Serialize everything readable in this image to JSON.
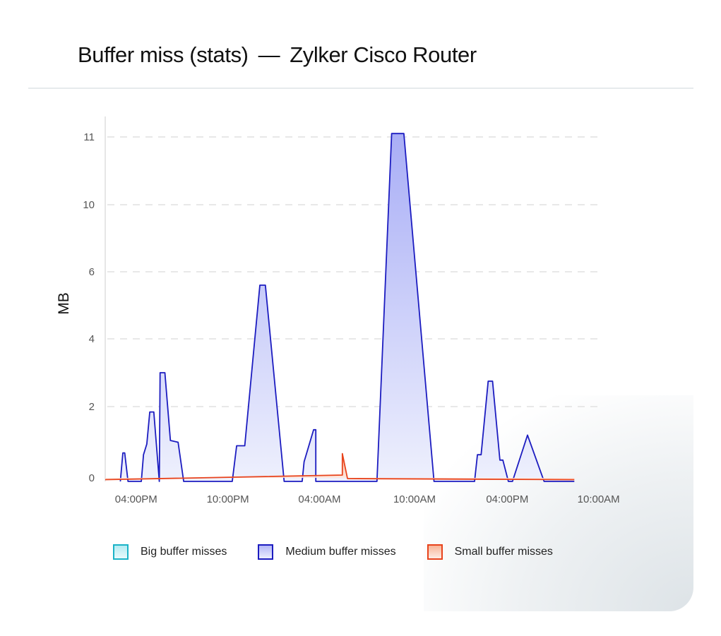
{
  "header": {
    "metric": "Buffer miss (stats)",
    "separator": "—",
    "device": "Zylker Cisco Router"
  },
  "colors": {
    "big": "#1ab3c7",
    "medium": "#1c1cc0",
    "small": "#e8431c"
  },
  "chart_data": {
    "type": "area",
    "ylabel": "MB",
    "yticks": [
      0,
      2,
      4,
      6,
      10,
      11
    ],
    "xticks": [
      "04:00PM",
      "10:00PM",
      "04:00AM",
      "10:00AM",
      "04:00PM",
      "10:00AM"
    ],
    "grid": true,
    "legend_position": "bottom",
    "series": [
      {
        "name": "Big buffer misses",
        "color": "#1ab3c7",
        "points": []
      },
      {
        "name": "Medium buffer misses",
        "color": "#1c1cc0",
        "points": [
          [
            0.41,
            -0.1
          ],
          [
            0.48,
            0.7
          ],
          [
            0.53,
            0.7
          ],
          [
            0.62,
            -0.1
          ],
          [
            0.98,
            -0.1
          ],
          [
            1.04,
            0.65
          ],
          [
            1.13,
            0.95
          ],
          [
            1.21,
            1.85
          ],
          [
            1.32,
            1.85
          ],
          [
            1.47,
            -0.1
          ],
          [
            1.49,
            3.0
          ],
          [
            1.62,
            3.0
          ],
          [
            1.77,
            1.05
          ],
          [
            1.98,
            1.0
          ],
          [
            2.13,
            -0.1
          ],
          [
            3.45,
            -0.1
          ],
          [
            3.57,
            0.9
          ],
          [
            3.79,
            0.9
          ],
          [
            4.2,
            5.6
          ],
          [
            4.35,
            5.6
          ],
          [
            4.86,
            -0.1
          ],
          [
            5.35,
            -0.1
          ],
          [
            5.4,
            0.45
          ],
          [
            5.66,
            1.35
          ],
          [
            5.72,
            1.35
          ],
          [
            5.72,
            -0.1
          ],
          [
            7.38,
            -0.1
          ],
          [
            7.78,
            11.05
          ],
          [
            8.11,
            11.05
          ],
          [
            8.93,
            -0.1
          ],
          [
            10.03,
            -0.1
          ],
          [
            10.11,
            0.65
          ],
          [
            10.21,
            0.65
          ],
          [
            10.4,
            2.75
          ],
          [
            10.52,
            2.75
          ],
          [
            10.72,
            0.5
          ],
          [
            10.8,
            0.5
          ],
          [
            10.95,
            -0.1
          ],
          [
            11.06,
            -0.1
          ],
          [
            11.47,
            1.2
          ],
          [
            11.92,
            -0.1
          ],
          [
            12.74,
            -0.1
          ]
        ]
      },
      {
        "name": "Small buffer misses",
        "color": "#e8431c",
        "points": [
          [
            0,
            -0.05
          ],
          [
            6.44,
            0.08
          ],
          [
            6.44,
            0.68
          ],
          [
            6.58,
            -0.02
          ],
          [
            12.74,
            -0.05
          ]
        ]
      }
    ]
  }
}
